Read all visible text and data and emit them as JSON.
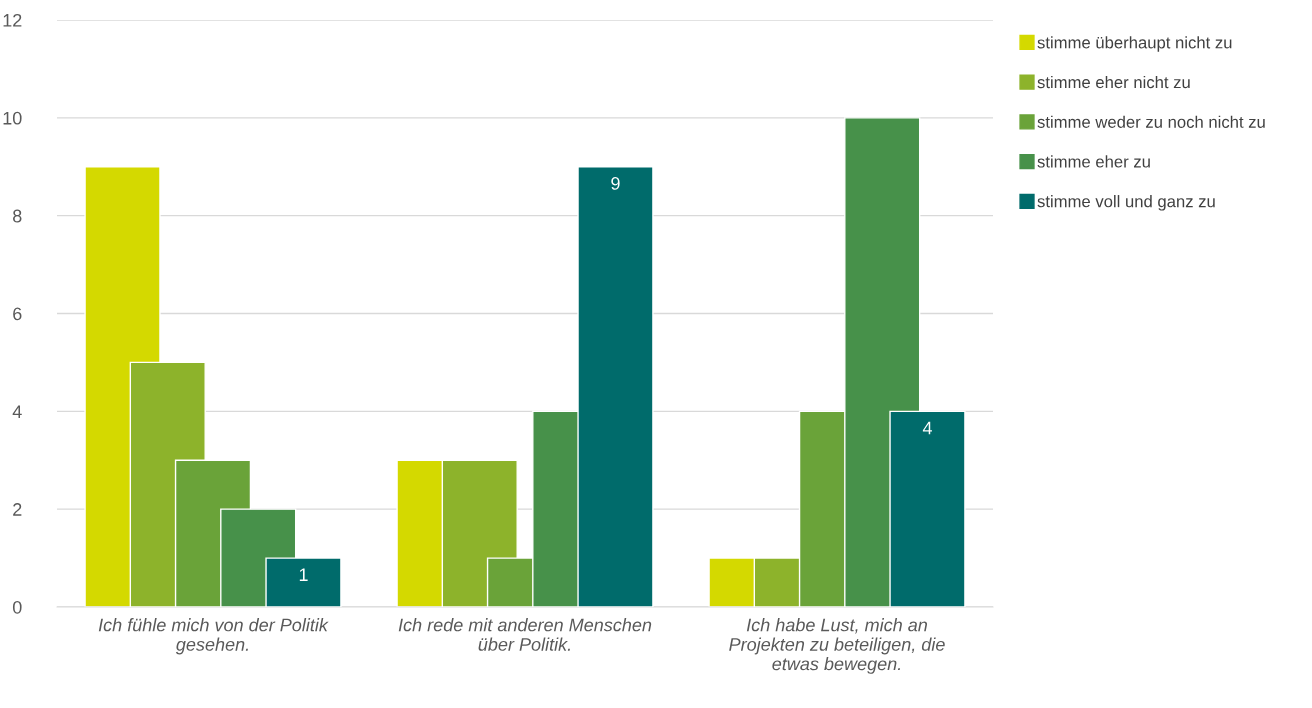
{
  "chart_data": {
    "type": "bar",
    "categories": [
      "Ich fühle mich von der Politik\ngesehen.",
      "Ich rede mit anderen Menschen\nüber Politik.",
      "Ich habe Lust, mich an\nProjekten zu beteiligen, die\netwas bewegen."
    ],
    "series": [
      {
        "name": "stimme überhaupt nicht zu",
        "color": "#d4d900",
        "values": [
          9,
          3,
          1
        ]
      },
      {
        "name": "stimme eher nicht zu",
        "color": "#8db32b",
        "values": [
          5,
          3,
          1
        ]
      },
      {
        "name": "stimme weder zu noch nicht zu",
        "color": "#6aa339",
        "values": [
          3,
          1,
          4
        ]
      },
      {
        "name": "stimme eher zu",
        "color": "#47914a",
        "values": [
          2,
          4,
          10
        ]
      },
      {
        "name": "stimme voll und ganz zu",
        "color": "#006b6b",
        "values": [
          1,
          9,
          4
        ],
        "value_labels": [
          "1",
          "9",
          "4"
        ]
      }
    ],
    "ylim": [
      0,
      12
    ],
    "yticks": [
      0,
      2,
      4,
      6,
      8,
      10,
      12
    ],
    "grid": "y",
    "legend": "right"
  }
}
